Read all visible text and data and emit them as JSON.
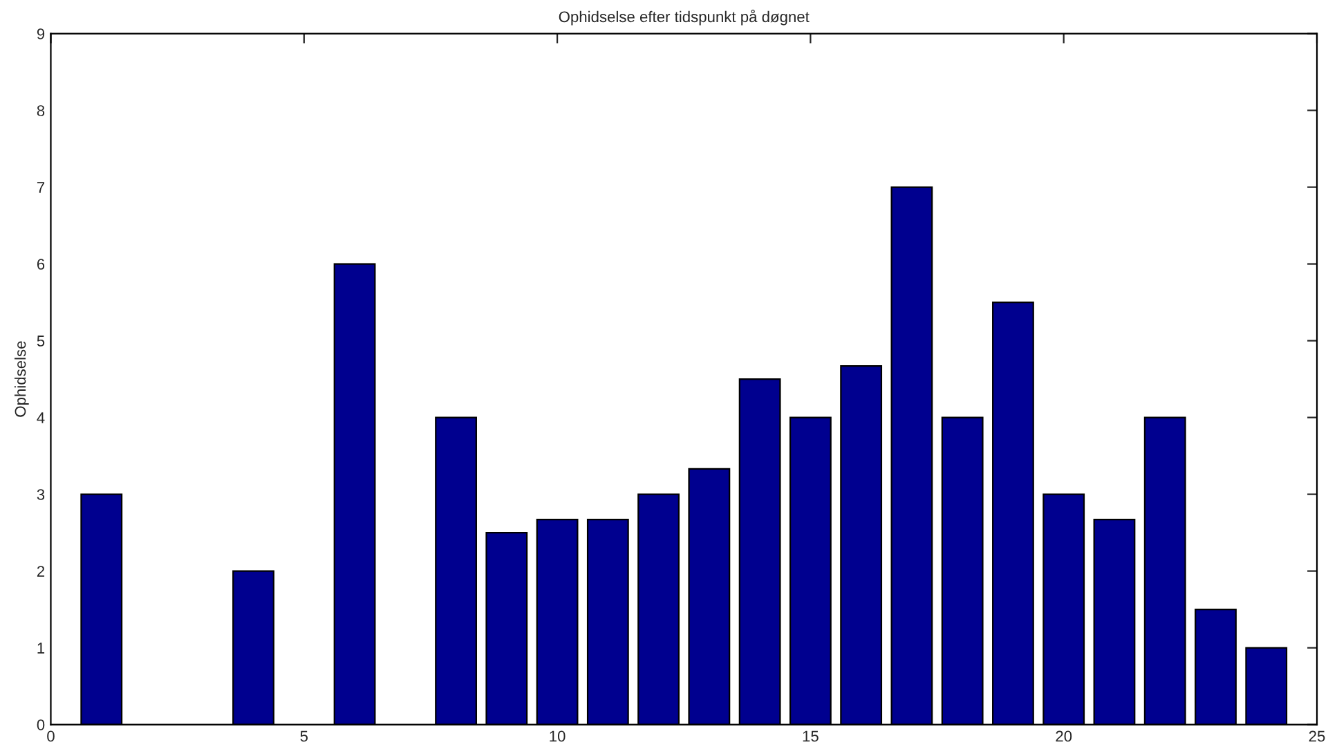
{
  "chart_data": {
    "type": "bar",
    "title": "Ophidselse efter tidspunkt på døgnet",
    "ylabel": "Ophidselse",
    "x": [
      1,
      4,
      6,
      8,
      9,
      10,
      11,
      12,
      13,
      14,
      15,
      16,
      17,
      18,
      19,
      20,
      21,
      22,
      23,
      24
    ],
    "values": [
      3,
      2,
      6,
      4,
      2.5,
      2.67,
      2.67,
      3,
      3.33,
      4.5,
      4,
      4.67,
      7,
      4,
      5.5,
      3,
      2.67,
      4,
      1.5,
      1
    ],
    "color": "#00008f",
    "xlim": [
      0,
      25
    ],
    "xticks": [
      0,
      5,
      10,
      15,
      20,
      25
    ],
    "ylim": [
      0,
      9
    ],
    "yticks": [
      0,
      1,
      2,
      3,
      4,
      5,
      6,
      7,
      8,
      9
    ],
    "grid": false
  }
}
